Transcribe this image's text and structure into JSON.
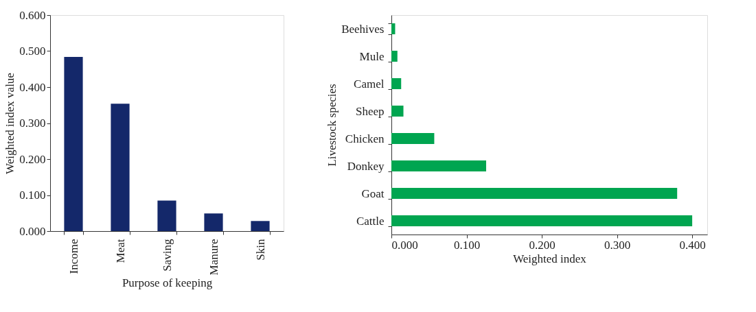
{
  "chart_data": [
    {
      "type": "bar",
      "xlabel": "Purpose of keeping",
      "ylabel": "Weighted index value",
      "categories": [
        "Income",
        "Meat",
        "Saving",
        "Manure",
        "Skin"
      ],
      "values": [
        0.484,
        0.354,
        0.085,
        0.049,
        0.028
      ],
      "color": "#14286a",
      "ylim": [
        0,
        0.6
      ],
      "yticks": [
        {
          "value": 0,
          "label": "0.000"
        },
        {
          "value": 0.1,
          "label": "0.100"
        },
        {
          "value": 0.2,
          "label": "0.200"
        },
        {
          "value": 0.3,
          "label": "0.300"
        },
        {
          "value": 0.4,
          "label": "0.400"
        },
        {
          "value": 0.5,
          "label": "0.500"
        },
        {
          "value": 0.6,
          "label": "0.600"
        }
      ],
      "grid": false
    },
    {
      "type": "bar",
      "orientation": "horizontal",
      "xlabel": "Weighted index",
      "ylabel": "Livestock species",
      "categories": [
        "Beehives",
        "Mule",
        "Camel",
        "Sheep",
        "Chicken",
        "Donkey",
        "Goat",
        "Cattle"
      ],
      "values": [
        0.005,
        0.008,
        0.013,
        0.016,
        0.057,
        0.126,
        0.38,
        0.4
      ],
      "color": "#00a550",
      "xlim": [
        0,
        0.42
      ],
      "xticks": [
        {
          "value": 0,
          "label": "0.000"
        },
        {
          "value": 0.1,
          "label": "0.100"
        },
        {
          "value": 0.2,
          "label": "0.200"
        },
        {
          "value": 0.3,
          "label": "0.300"
        },
        {
          "value": 0.4,
          "label": "0.400"
        }
      ],
      "grid": false
    }
  ]
}
